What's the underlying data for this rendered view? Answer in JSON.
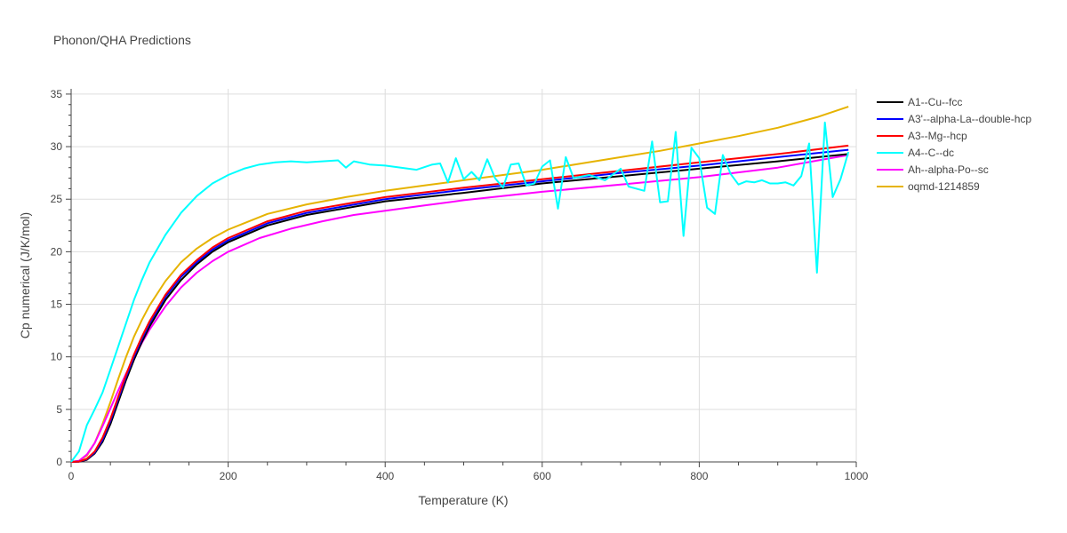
{
  "chart_data": {
    "type": "line",
    "title": "Phonon/QHA Predictions",
    "xlabel": "Temperature (K)",
    "ylabel": "Cp numerical (J/K/mol)",
    "xlim": [
      0,
      1000
    ],
    "ylim": [
      0,
      35.5
    ],
    "xticks": [
      0,
      200,
      400,
      600,
      800,
      1000
    ],
    "xtick_labels": [
      "0",
      "200",
      "400",
      "600",
      "800",
      "1000"
    ],
    "yticks": [
      0,
      5,
      10,
      15,
      20,
      25,
      30,
      35
    ],
    "ytick_labels": [
      "0",
      "5",
      "10",
      "15",
      "20",
      "25",
      "30",
      "35"
    ],
    "grid": true,
    "legend_position": "top-right",
    "series": [
      {
        "name": "A1--Cu--fcc",
        "color": "#000000",
        "x": [
          0,
          10,
          20,
          30,
          40,
          50,
          60,
          70,
          80,
          90,
          100,
          120,
          140,
          160,
          180,
          200,
          250,
          300,
          400,
          500,
          600,
          700,
          800,
          900,
          990
        ],
        "y": [
          0,
          0.02,
          0.2,
          0.8,
          1.9,
          3.6,
          5.7,
          7.8,
          9.7,
          11.4,
          12.9,
          15.4,
          17.3,
          18.8,
          20.0,
          20.9,
          22.5,
          23.5,
          24.8,
          25.6,
          26.5,
          27.2,
          27.9,
          28.6,
          29.3
        ]
      },
      {
        "name": "A3'--alpha-La--double-hcp",
        "color": "#0000ff",
        "x": [
          0,
          10,
          20,
          30,
          40,
          50,
          60,
          70,
          80,
          90,
          100,
          120,
          140,
          160,
          180,
          200,
          250,
          300,
          400,
          500,
          600,
          700,
          800,
          900,
          990
        ],
        "y": [
          0,
          0.03,
          0.25,
          0.9,
          2.1,
          3.9,
          6.0,
          8.1,
          10.0,
          11.7,
          13.2,
          15.7,
          17.6,
          19.0,
          20.2,
          21.1,
          22.7,
          23.7,
          25.0,
          25.9,
          26.7,
          27.5,
          28.2,
          29.0,
          29.7
        ]
      },
      {
        "name": "A3--Mg--hcp",
        "color": "#ff0000",
        "x": [
          0,
          10,
          20,
          30,
          40,
          50,
          60,
          70,
          80,
          90,
          100,
          120,
          140,
          160,
          180,
          200,
          250,
          300,
          400,
          500,
          600,
          700,
          800,
          900,
          990
        ],
        "y": [
          0,
          0.03,
          0.3,
          1.0,
          2.3,
          4.1,
          6.2,
          8.3,
          10.2,
          11.9,
          13.4,
          15.9,
          17.8,
          19.2,
          20.4,
          21.3,
          22.9,
          23.9,
          25.2,
          26.1,
          26.9,
          27.7,
          28.5,
          29.3,
          30.1
        ]
      },
      {
        "name": "A4--C--dc",
        "color": "#00ffff",
        "x": [
          0,
          10,
          20,
          30,
          40,
          50,
          60,
          70,
          80,
          90,
          100,
          120,
          140,
          160,
          180,
          200,
          220,
          240,
          260,
          280,
          300,
          320,
          340,
          350,
          360,
          380,
          400,
          420,
          440,
          460,
          470,
          480,
          490,
          500,
          510,
          520,
          530,
          540,
          550,
          560,
          570,
          580,
          590,
          600,
          610,
          620,
          630,
          640,
          660,
          680,
          700,
          710,
          730,
          740,
          750,
          760,
          770,
          780,
          790,
          800,
          810,
          820,
          830,
          840,
          850,
          860,
          870,
          880,
          890,
          900,
          910,
          920,
          930,
          940,
          950,
          960,
          970,
          980,
          990
        ],
        "y": [
          0,
          1.0,
          3.5,
          5.0,
          6.6,
          8.8,
          11.0,
          13.2,
          15.4,
          17.3,
          19.0,
          21.6,
          23.7,
          25.3,
          26.5,
          27.3,
          27.9,
          28.3,
          28.5,
          28.6,
          28.5,
          28.6,
          28.7,
          28.0,
          28.6,
          28.3,
          28.2,
          28.0,
          27.8,
          28.3,
          28.4,
          26.6,
          28.9,
          26.9,
          27.6,
          26.8,
          28.8,
          27.0,
          26.1,
          28.3,
          28.4,
          26.3,
          26.5,
          28.1,
          28.7,
          24.1,
          29.0,
          27.0,
          27.3,
          26.8,
          27.9,
          26.2,
          25.8,
          30.5,
          24.7,
          24.8,
          31.4,
          21.5,
          29.9,
          28.9,
          24.2,
          23.6,
          29.2,
          27.4,
          26.4,
          26.7,
          26.6,
          26.8,
          26.5,
          26.5,
          26.6,
          26.3,
          27.2,
          30.3,
          18.0,
          32.3,
          25.2,
          26.9,
          29.5
        ]
      },
      {
        "name": "Ah--alpha-Po--sc",
        "color": "#ff00ff",
        "x": [
          0,
          10,
          20,
          30,
          40,
          50,
          60,
          70,
          80,
          90,
          100,
          120,
          140,
          160,
          180,
          200,
          240,
          280,
          320,
          360,
          400,
          450,
          500,
          600,
          700,
          800,
          900,
          990
        ],
        "y": [
          0,
          0.1,
          0.7,
          1.8,
          3.4,
          5.1,
          6.8,
          8.4,
          9.9,
          11.3,
          12.6,
          14.8,
          16.6,
          18.0,
          19.1,
          20.0,
          21.3,
          22.2,
          22.9,
          23.5,
          23.9,
          24.4,
          24.9,
          25.7,
          26.4,
          27.1,
          28.0,
          29.2
        ]
      },
      {
        "name": "oqmd-1214859",
        "color": "#e6b300",
        "x": [
          0,
          10,
          20,
          30,
          40,
          50,
          60,
          70,
          80,
          90,
          100,
          120,
          140,
          160,
          180,
          200,
          250,
          300,
          350,
          400,
          450,
          500,
          550,
          600,
          650,
          700,
          750,
          800,
          850,
          900,
          950,
          990
        ],
        "y": [
          0,
          0.1,
          0.6,
          1.8,
          3.6,
          5.7,
          7.9,
          10.0,
          11.9,
          13.5,
          14.9,
          17.2,
          19.0,
          20.3,
          21.3,
          22.1,
          23.6,
          24.5,
          25.2,
          25.8,
          26.3,
          26.8,
          27.3,
          27.8,
          28.4,
          29.0,
          29.6,
          30.3,
          31.0,
          31.8,
          32.8,
          33.8
        ]
      }
    ]
  }
}
